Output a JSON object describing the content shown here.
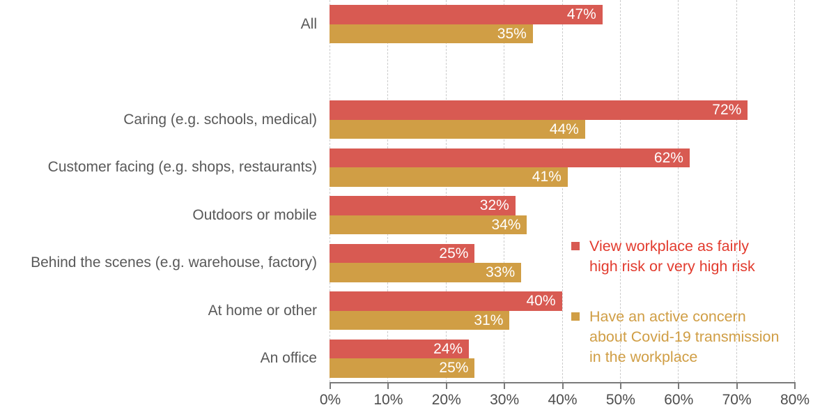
{
  "chart_data": {
    "type": "bar",
    "orientation": "horizontal",
    "title": "",
    "xlabel": "",
    "ylabel": "",
    "categories": [
      "All",
      "Caring (e.g. schools, medical)",
      "Customer facing (e.g. shops, restaurants)",
      "Outdoors or mobile",
      "Behind the scenes (e.g. warehouse, factory)",
      "At home or other",
      "An office"
    ],
    "series": [
      {
        "name": "View workplace as fairly high risk or very high risk",
        "color": "#d85a52",
        "values": [
          47,
          72,
          62,
          32,
          25,
          40,
          24
        ]
      },
      {
        "name": "Have an active concern about Covid-19 transmission in the workplace",
        "color": "#d09e45",
        "values": [
          35,
          44,
          41,
          34,
          33,
          31,
          25
        ]
      }
    ],
    "value_suffix": "%",
    "value_labels_shown": true,
    "axis": {
      "min": 0,
      "max": 80,
      "step": 10,
      "tick_labels": [
        "0%",
        "10%",
        "20%",
        "30%",
        "40%",
        "50%",
        "60%",
        "70%",
        "80%"
      ]
    },
    "grid": "vertical-dashed",
    "gap_after_first_category": true,
    "legend_position": "right-middle"
  },
  "legend": {
    "entries": [
      {
        "label": "View workplace as fairly high risk or very high risk",
        "lines": [
          "View workplace as fairly",
          "high risk or very high risk"
        ],
        "text_color": "#e23b2e",
        "swatch_color": "#d85a52"
      },
      {
        "label": "Have an active concern about Covid-19 transmission in the workplace",
        "lines": [
          "Have an active concern",
          "about Covid-19 transmission",
          "in the workplace"
        ],
        "text_color": "#d09e45",
        "swatch_color": "#d09e45"
      }
    ]
  },
  "colors": {
    "series_red": "#d85a52",
    "series_gold": "#d09e45",
    "legend_red_text": "#e23b2e",
    "legend_gold_text": "#d09e45",
    "category_text": "#595959",
    "tick_text": "#4d4d4d",
    "axis_line": "#7a7a7a",
    "gridline": "#cccccc",
    "bar_value_text": "#ffffff",
    "background": "#ffffff"
  }
}
